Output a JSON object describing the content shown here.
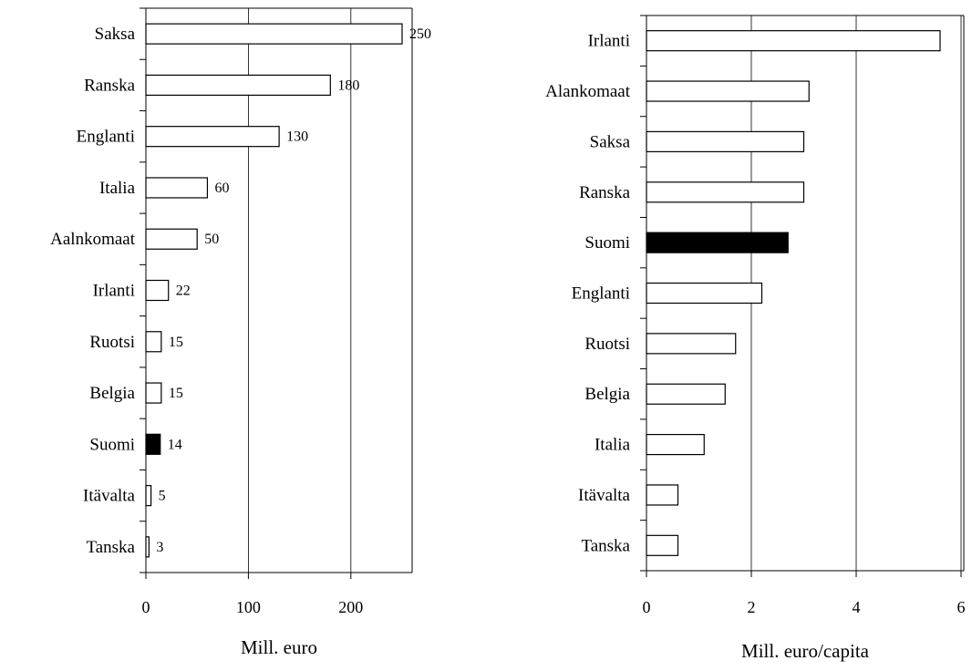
{
  "colors": {
    "bar_fill": "#ffffff",
    "highlight_fill": "#000000",
    "stroke": "#000000",
    "grid": "#000000"
  },
  "chart_data": [
    {
      "type": "bar",
      "orientation": "horizontal",
      "categories": [
        "Saksa",
        "Ranska",
        "Englanti",
        "Italia",
        "Aalnkomaat",
        "Irlanti",
        "Ruotsi",
        "Belgia",
        "Suomi",
        "Itävalta",
        "Tanska"
      ],
      "values": [
        250,
        180,
        130,
        60,
        50,
        22,
        15,
        15,
        14,
        5,
        3
      ],
      "data_labels": [
        "250",
        "180",
        "130",
        "60",
        "50",
        "22",
        "15",
        "15",
        "14",
        "5",
        "3"
      ],
      "highlight": "Suomi",
      "xlabel": "Mill. euro",
      "xlim": [
        0,
        260
      ],
      "xticks": [
        0,
        100,
        200
      ],
      "xtick_labels": [
        "0",
        "100",
        "200"
      ],
      "grid": "vertical",
      "title": ""
    },
    {
      "type": "bar",
      "orientation": "horizontal",
      "categories": [
        "Irlanti",
        "Alankomaat",
        "Saksa",
        "Ranska",
        "Suomi",
        "Englanti",
        "Ruotsi",
        "Belgia",
        "Italia",
        "Itävalta",
        "Tanska"
      ],
      "values": [
        5.6,
        3.1,
        3.0,
        3.0,
        2.7,
        2.2,
        1.7,
        1.5,
        1.1,
        0.6,
        0.6
      ],
      "highlight": "Suomi",
      "xlabel": "Mill. euro/capita",
      "xlim": [
        0,
        6.4
      ],
      "xticks": [
        0,
        2,
        4,
        6
      ],
      "xtick_labels": [
        "0",
        "2",
        "4",
        "6"
      ],
      "grid": "vertical",
      "title": ""
    }
  ]
}
